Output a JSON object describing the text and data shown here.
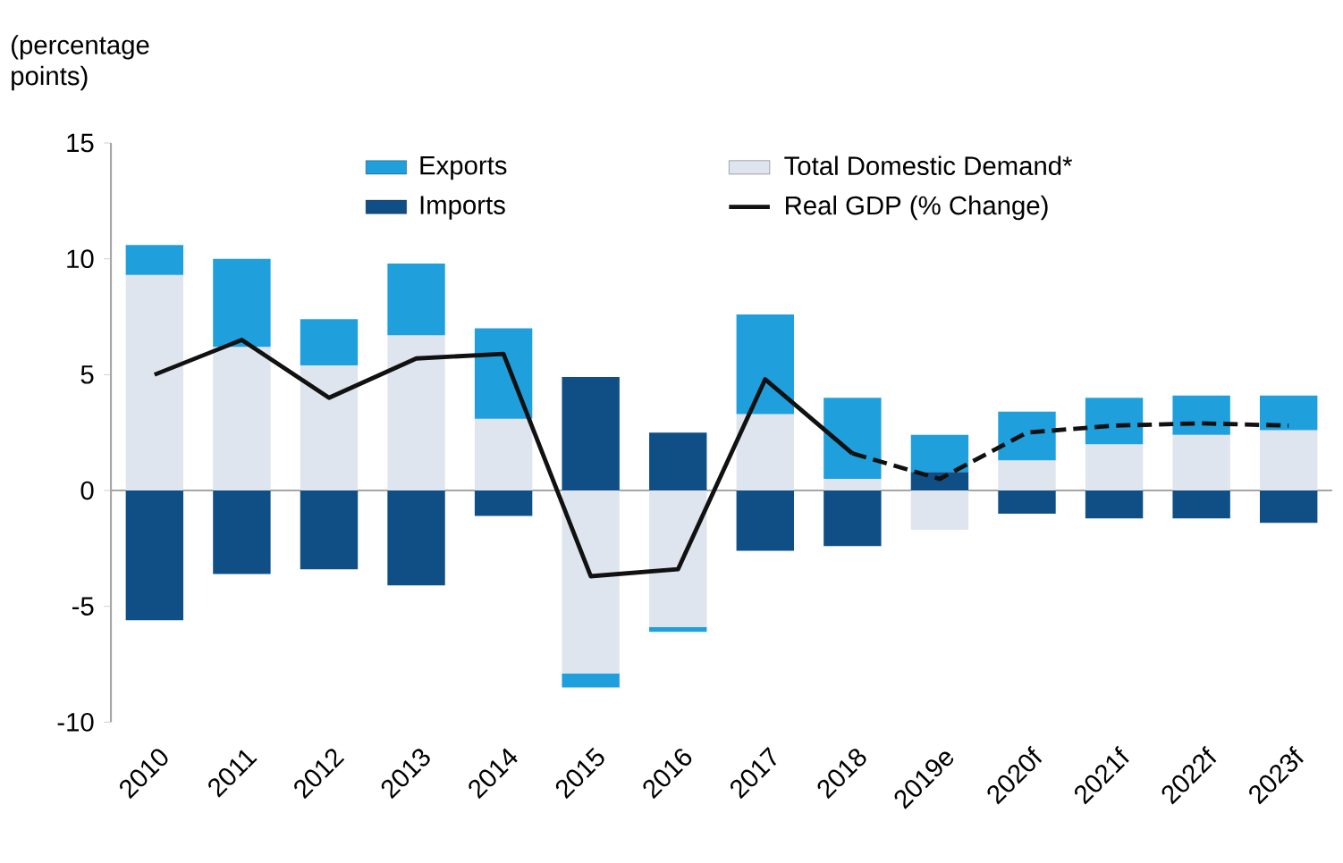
{
  "chart_data": {
    "type": "bar",
    "stacked": true,
    "ylabel": "(percentage points)",
    "categories": [
      "2010",
      "2011",
      "2012",
      "2013",
      "2014",
      "2015",
      "2016",
      "2017",
      "2018",
      "2019e",
      "2020f",
      "2021f",
      "2022f",
      "2023f"
    ],
    "series": [
      {
        "name": "Total Domestic Demand*",
        "color": "#dfe5ee",
        "values": [
          9.3,
          6.2,
          5.4,
          6.7,
          3.1,
          -7.9,
          -5.9,
          3.3,
          0.5,
          -1.7,
          1.3,
          2.0,
          2.4,
          2.6
        ]
      },
      {
        "name": "Imports",
        "color": "#0f4f86",
        "values": [
          -5.6,
          -3.6,
          -3.4,
          -4.1,
          -1.1,
          4.9,
          2.5,
          -2.6,
          -2.4,
          0.8,
          -1.0,
          -1.2,
          -1.2,
          -1.4
        ]
      },
      {
        "name": "Exports",
        "color": "#1fa0dc",
        "values": [
          1.3,
          3.8,
          2.0,
          3.1,
          3.9,
          -0.6,
          -0.2,
          4.3,
          3.5,
          1.6,
          2.1,
          2.0,
          1.7,
          1.5
        ]
      },
      {
        "name": "Real GDP (% Change)",
        "type": "line",
        "color": "#111111",
        "line_style": "solid",
        "values": [
          5.0,
          6.5,
          4.0,
          5.7,
          5.9,
          -3.7,
          -3.4,
          4.8,
          1.6,
          null,
          null,
          null,
          null,
          null
        ]
      },
      {
        "type": "line",
        "color": "#111111",
        "line_style": "dashed",
        "values": [
          null,
          null,
          null,
          null,
          null,
          null,
          null,
          null,
          1.6,
          0.5,
          2.5,
          2.8,
          2.9,
          2.8
        ]
      }
    ],
    "ylim": [
      -10,
      15
    ],
    "yticks": [
      -10,
      -5,
      0,
      5,
      10,
      15
    ],
    "legend": "top"
  }
}
